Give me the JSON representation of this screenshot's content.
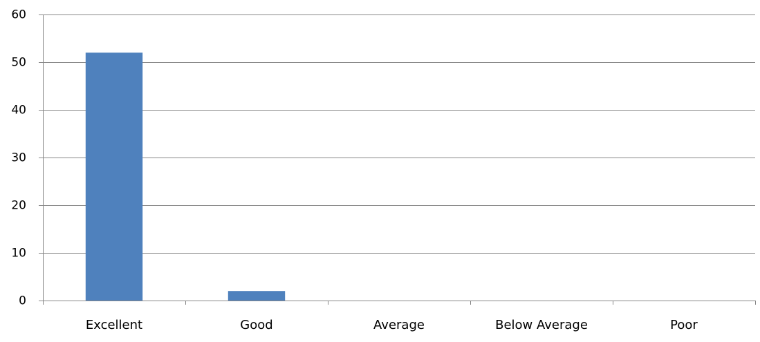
{
  "chart_data": {
    "type": "bar",
    "title": "",
    "xlabel": "",
    "ylabel": "",
    "categories": [
      "Excellent",
      "Good",
      "Average",
      "Below Average",
      "Poor"
    ],
    "values": [
      52,
      2,
      0,
      0,
      0
    ],
    "ylim": [
      0,
      60
    ],
    "yticks": [
      "0",
      "10",
      "20",
      "30",
      "40",
      "50",
      "60"
    ],
    "grid": true,
    "legend": "none",
    "bar_color": "#4F81BD",
    "gridline_color": "#868686",
    "axis_color": "#868686"
  }
}
